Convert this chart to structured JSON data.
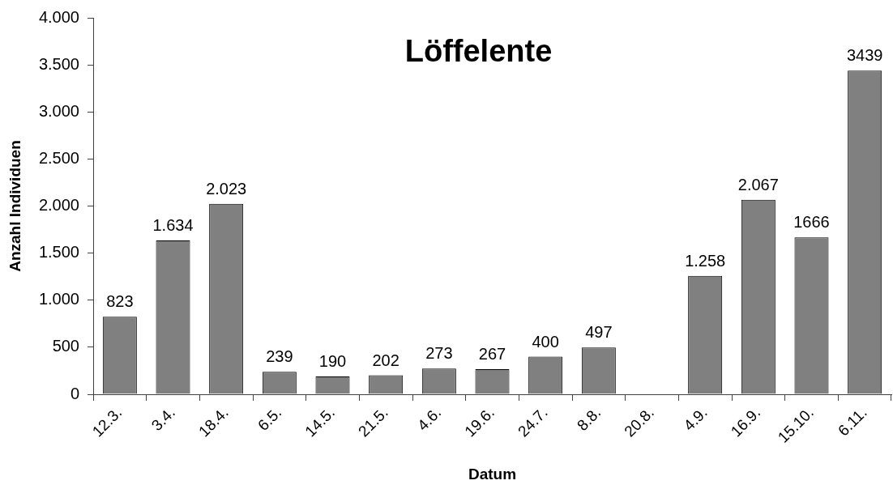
{
  "chart_data": {
    "type": "bar",
    "title": "Löffelente",
    "xlabel": "Datum",
    "ylabel": "Anzahl Individuen",
    "categories": [
      "12.3.",
      "3.4.",
      "18.4.",
      "6.5.",
      "14.5.",
      "21.5.",
      "4.6.",
      "19.6.",
      "24.7.",
      "8.8.",
      "20.8.",
      "4.9.",
      "16.9.",
      "15.10.",
      "6.11."
    ],
    "values": [
      823,
      1634,
      2023,
      239,
      190,
      202,
      273,
      267,
      400,
      497,
      null,
      1258,
      2067,
      1666,
      3439
    ],
    "value_labels": [
      "823",
      "1.634",
      "2.023",
      "239",
      "190",
      "202",
      "273",
      "267",
      "400",
      "497",
      null,
      "1.258",
      "2.067",
      "1666",
      "3439"
    ],
    "color": "#808080",
    "ylim": [
      0,
      4000
    ],
    "yticks": [
      0,
      500,
      {
        "value": 1000,
        "label": "1.000"
      },
      {
        "value": 1500,
        "label": "1.500"
      },
      {
        "value": 2000,
        "label": "2.000"
      },
      {
        "value": 2500,
        "label": "2.500"
      },
      {
        "value": 3000,
        "label": "3.000"
      },
      {
        "value": 3500,
        "label": "3.500"
      },
      {
        "value": 4000,
        "label": "4.000"
      }
    ],
    "grid": false,
    "legend": false
  }
}
